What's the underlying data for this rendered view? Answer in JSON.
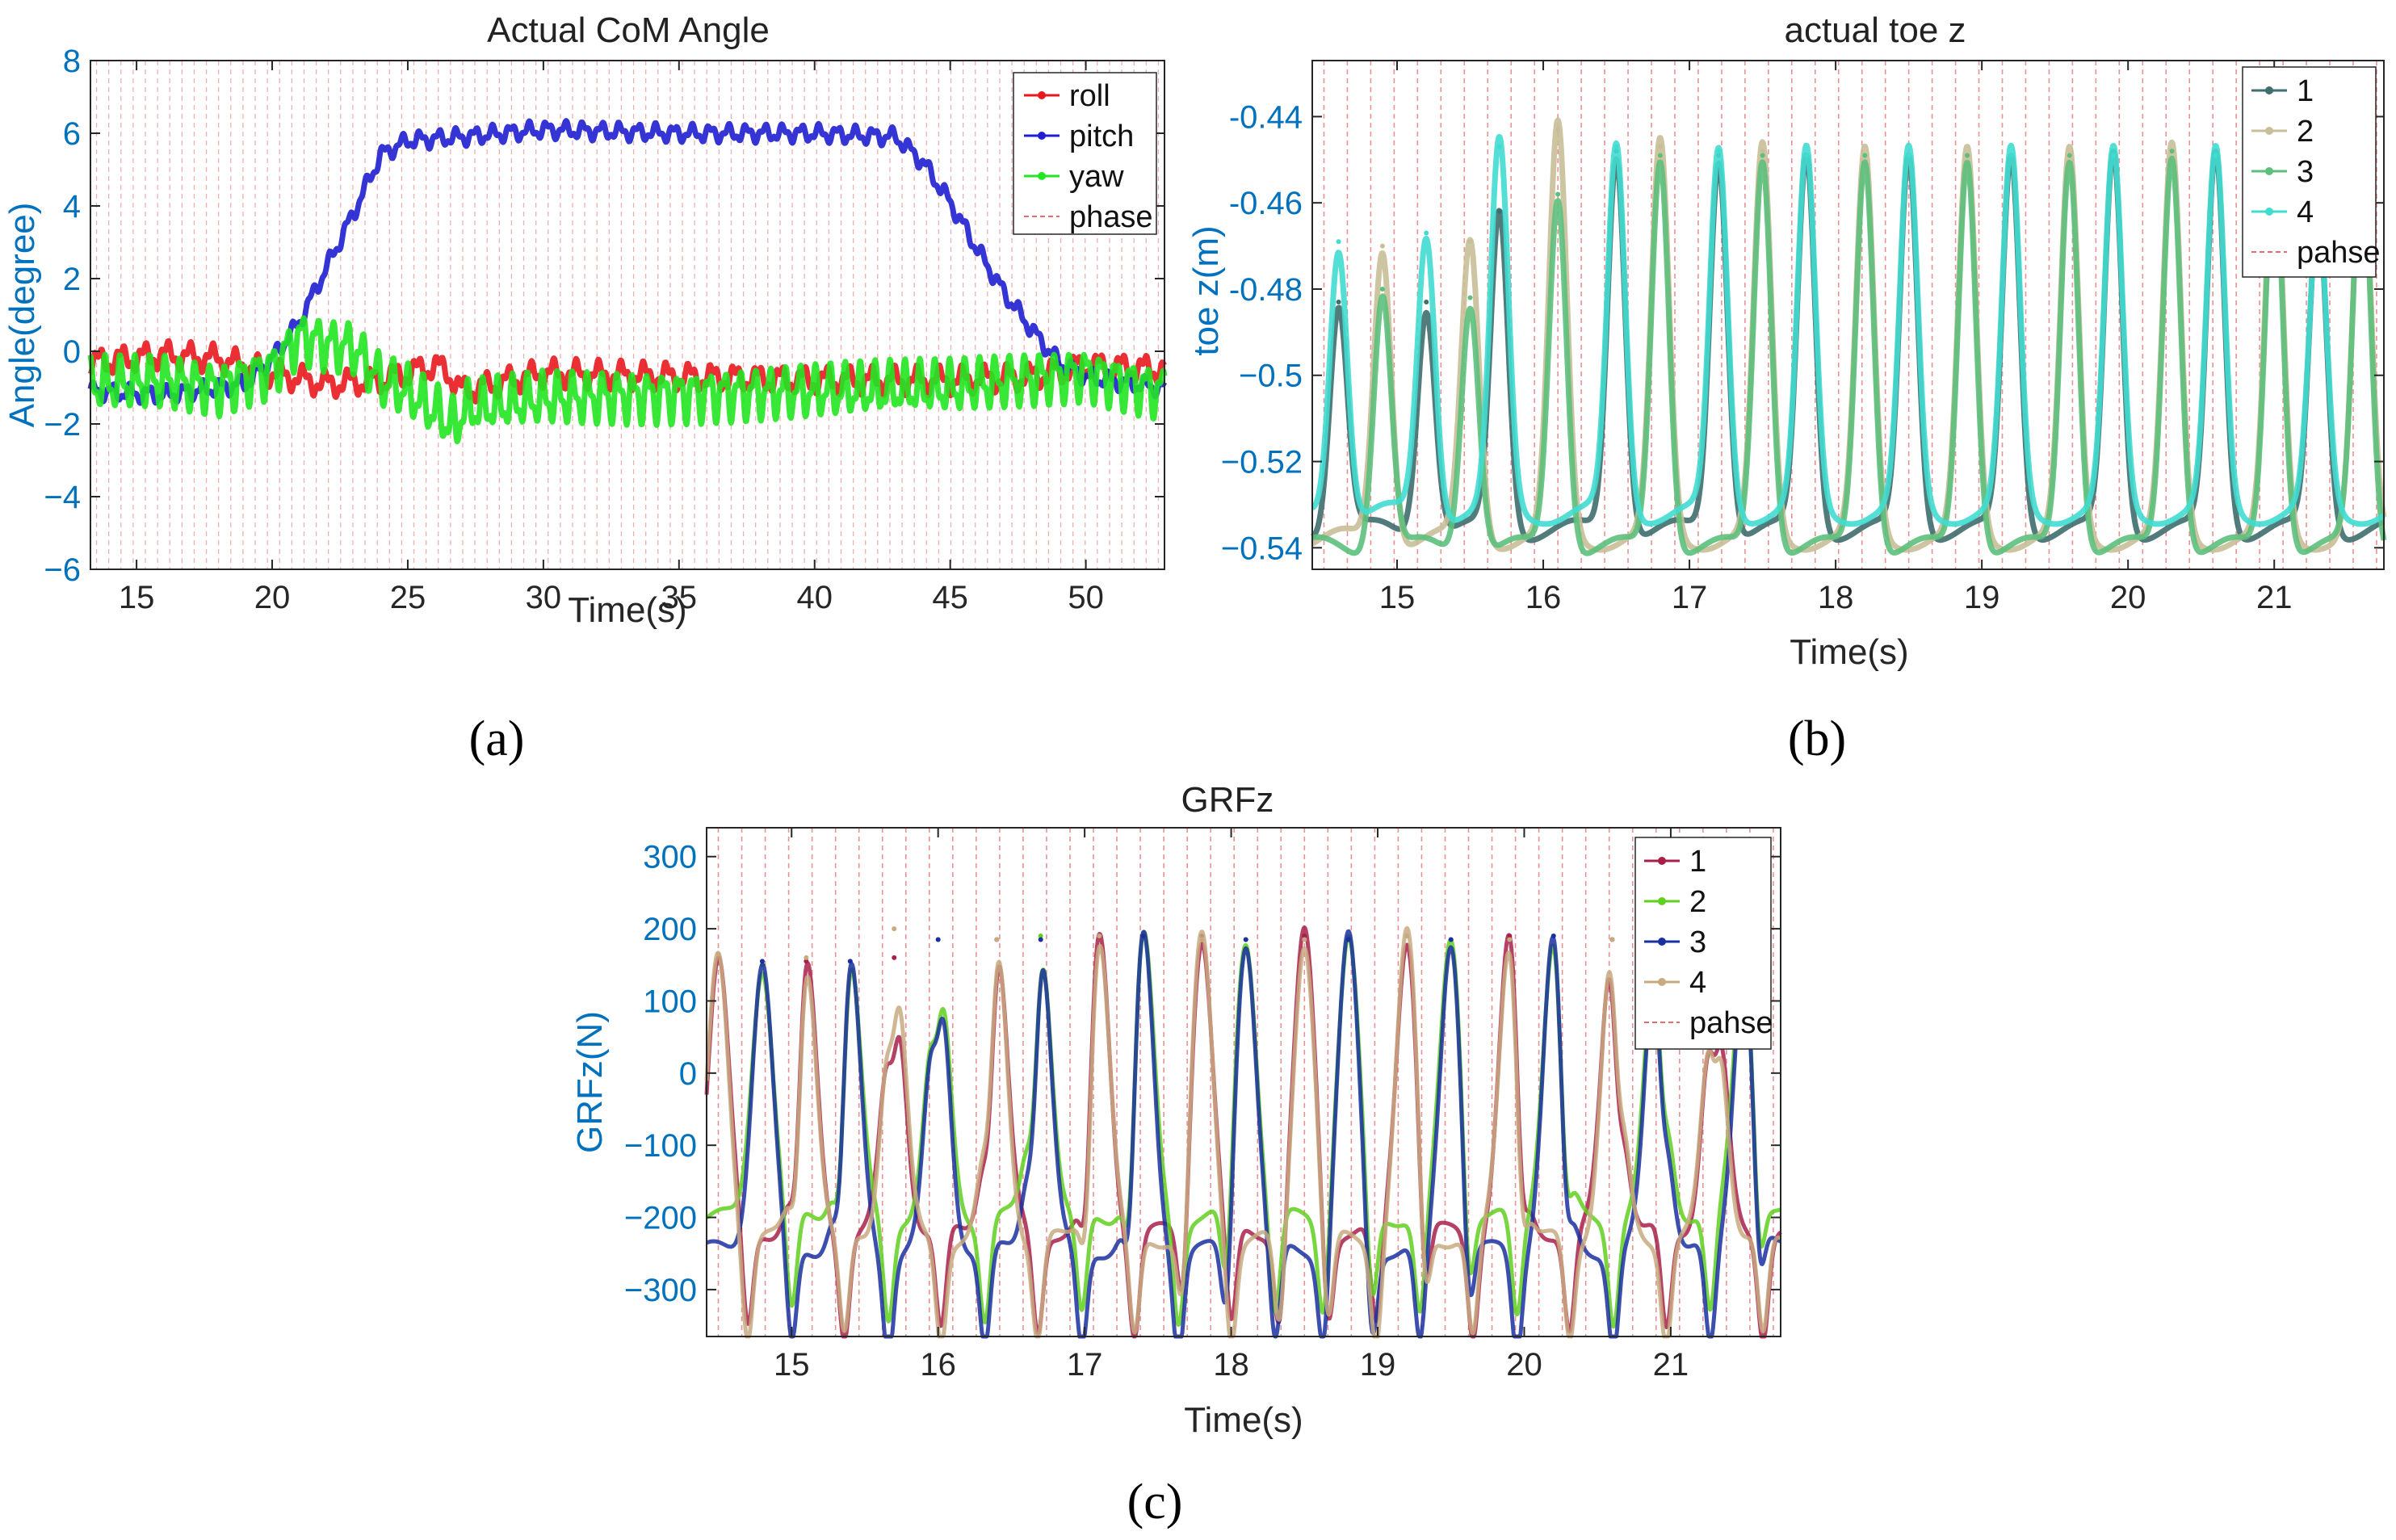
{
  "chart_data": [
    {
      "id": "a",
      "type": "line",
      "title": "Actual CoM Angle",
      "xlabel": "Time(s)",
      "ylabel": "Angle(degree)",
      "caption": "(a)",
      "xlim": [
        13.3,
        52.9
      ],
      "ylim": [
        -6,
        8
      ],
      "xticks": [
        15,
        20,
        25,
        30,
        35,
        40,
        45,
        50
      ],
      "yticks": [
        -6,
        -4,
        -2,
        0,
        2,
        4,
        6,
        8
      ],
      "legend": [
        "roll",
        "pitch",
        "yaw",
        "phase"
      ],
      "legend_position": "top-right",
      "phase_color": "#E07070",
      "series": [
        {
          "name": "roll",
          "color": "#E8191E",
          "x": [
            13.5,
            16,
            18,
            20,
            22,
            24,
            26,
            26.5,
            27,
            30,
            35,
            40,
            45,
            48,
            50,
            52.7
          ],
          "values": [
            -0.3,
            -0.1,
            -0.2,
            -0.6,
            -0.9,
            -0.8,
            -0.4,
            -0.6,
            -1.1,
            -0.6,
            -0.7,
            -0.8,
            -0.8,
            -0.7,
            -0.4,
            -0.5
          ]
        },
        {
          "name": "pitch",
          "color": "#1F1FD0",
          "x": [
            13.5,
            16,
            19,
            20,
            21,
            22,
            23,
            24,
            25,
            27,
            30,
            35,
            40,
            43,
            44,
            45,
            46,
            47,
            48,
            49,
            50,
            52.7
          ],
          "values": [
            -1.1,
            -1.2,
            -0.9,
            -0.2,
            0.8,
            2.3,
            3.8,
            5.4,
            5.8,
            5.9,
            6.1,
            6.0,
            6.0,
            5.9,
            5.2,
            4.1,
            2.8,
            1.6,
            0.6,
            -0.3,
            -0.7,
            -1.0
          ]
        },
        {
          "name": "yaw",
          "color": "#21E621",
          "x": [
            13.5,
            16,
            18,
            20,
            21,
            22,
            23,
            24,
            25,
            26.8,
            27,
            30,
            35,
            40,
            45,
            50,
            52.7
          ],
          "values": [
            -0.9,
            -0.8,
            -1.0,
            -0.5,
            0.4,
            0.2,
            0.1,
            -0.8,
            -1.1,
            -2.1,
            -1.6,
            -1.3,
            -1.2,
            -1.1,
            -1.0,
            -0.6,
            -1.1
          ]
        }
      ]
    },
    {
      "id": "b",
      "type": "line",
      "title": "actual toe z",
      "xlabel": "Time(s)",
      "ylabel": "toe z(m)",
      "caption": "(b)",
      "xlim": [
        14.42,
        21.75
      ],
      "ylim": [
        -0.545,
        -0.427
      ],
      "xticks": [
        15,
        16,
        17,
        18,
        19,
        20,
        21
      ],
      "yticks": [
        -0.44,
        -0.46,
        -0.48,
        -0.5,
        -0.52,
        -0.54
      ],
      "ytick_labels": [
        "-0.44",
        "-0.46",
        "-0.48",
        "−0.5",
        "−0.52",
        "−0.54"
      ],
      "legend": [
        "1",
        "2",
        "3",
        "4",
        "pahse"
      ],
      "legend_position": "top-right",
      "phase_color": "#E07070",
      "series": [
        {
          "name": "1",
          "color": "#3F6E6E",
          "peak_times": [
            14.6,
            15.2,
            15.7,
            16.5,
            17.2,
            17.8,
            18.5,
            19.2,
            19.9,
            20.6,
            21.3
          ],
          "peak_values": [
            -0.483,
            -0.483,
            -0.462,
            -0.448,
            -0.449,
            -0.449,
            -0.449,
            -0.449,
            -0.448,
            -0.448,
            -0.462
          ],
          "baseline": -0.536
        },
        {
          "name": "2",
          "color": "#C8BE98",
          "peak_times": [
            14.9,
            15.5,
            16.1,
            16.8,
            17.5,
            18.2,
            18.9,
            19.6,
            20.3,
            21.0,
            21.6
          ],
          "peak_values": [
            -0.47,
            -0.469,
            -0.443,
            -0.447,
            -0.448,
            -0.449,
            -0.449,
            -0.449,
            -0.448,
            -0.449,
            -0.448
          ],
          "baseline": -0.538
        },
        {
          "name": "3",
          "color": "#5CC07C",
          "peak_times": [
            14.9,
            15.5,
            16.1,
            16.8,
            17.5,
            18.2,
            18.9,
            19.6,
            20.3,
            21.0,
            21.6
          ],
          "peak_values": [
            -0.48,
            -0.482,
            -0.458,
            -0.449,
            -0.449,
            -0.449,
            -0.449,
            -0.449,
            -0.448,
            -0.449,
            -0.448
          ],
          "baseline": -0.54
        },
        {
          "name": "4",
          "color": "#40DCD0",
          "peak_times": [
            14.6,
            15.2,
            15.7,
            16.5,
            17.2,
            17.8,
            18.5,
            19.2,
            19.9,
            20.6,
            21.3
          ],
          "peak_values": [
            -0.469,
            -0.467,
            -0.447,
            -0.447,
            -0.448,
            -0.449,
            -0.449,
            -0.449,
            -0.449,
            -0.449,
            -0.465
          ],
          "baseline": -0.532
        }
      ]
    },
    {
      "id": "c",
      "type": "scatter",
      "title": "GRFz",
      "xlabel": "Time(s)",
      "ylabel": "GRFz(N)",
      "caption": "(c)",
      "xlim": [
        14.42,
        21.75
      ],
      "ylim": [
        -365,
        340
      ],
      "xticks": [
        15,
        16,
        17,
        18,
        19,
        20,
        21
      ],
      "yticks": [
        300,
        200,
        100,
        0,
        -100,
        -200,
        -300
      ],
      "ytick_labels": [
        "300",
        "200",
        "100",
        "0",
        "−100",
        "−200",
        "−300"
      ],
      "legend": [
        "1",
        "2",
        "3",
        "4",
        "pahse"
      ],
      "legend_position": "top-right",
      "phase_color": "#E07070",
      "series": [
        {
          "name": "1",
          "color": "#A8204A",
          "peak_times": [
            14.5,
            15.1,
            15.7,
            16.4,
            17.1,
            17.8,
            18.5,
            19.2,
            19.9,
            20.6,
            21.3
          ],
          "peak_values": [
            160,
            155,
            160,
            185,
            190,
            190,
            190,
            190,
            190,
            185,
            160
          ],
          "baseline": -220
        },
        {
          "name": "2",
          "color": "#60D020",
          "peak_times": [
            14.8,
            15.4,
            16.0,
            16.7,
            17.4,
            18.1,
            18.8,
            19.5,
            20.2,
            20.9,
            21.5
          ],
          "peak_values": [
            150,
            155,
            185,
            190,
            190,
            185,
            185,
            185,
            190,
            180,
            165
          ],
          "baseline": -200
        },
        {
          "name": "3",
          "color": "#1A30A0",
          "peak_times": [
            14.8,
            15.4,
            16.0,
            16.7,
            17.4,
            18.1,
            18.8,
            19.5,
            20.2,
            20.9,
            21.5
          ],
          "peak_values": [
            155,
            155,
            185,
            185,
            190,
            185,
            185,
            185,
            190,
            180,
            160
          ],
          "baseline": -245
        },
        {
          "name": "4",
          "color": "#C8AA80",
          "peak_times": [
            14.5,
            15.1,
            15.7,
            16.4,
            17.1,
            17.8,
            18.5,
            19.2,
            19.9,
            20.6,
            21.3
          ],
          "peak_values": [
            165,
            160,
            200,
            185,
            190,
            185,
            185,
            190,
            185,
            185,
            160
          ],
          "baseline": -230
        }
      ]
    }
  ]
}
